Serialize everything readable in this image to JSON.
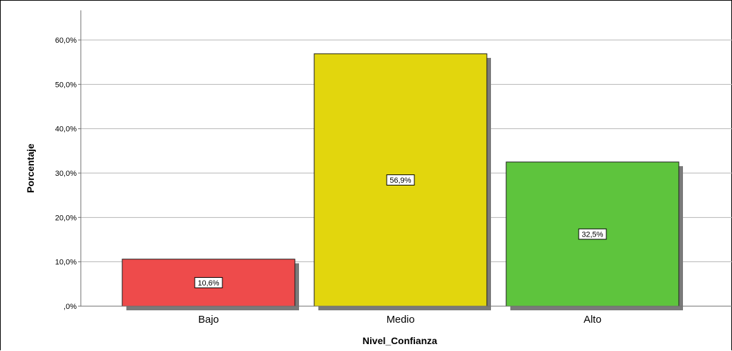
{
  "chart_data": {
    "type": "bar",
    "title": "",
    "xlabel": "Nivel_Confianza",
    "ylabel": "Porcentaje",
    "categories": [
      "Bajo",
      "Medio",
      "Alto"
    ],
    "values": [
      10.6,
      56.9,
      32.5
    ],
    "data_labels": [
      "10,6%",
      "56,9%",
      "32,5%"
    ],
    "colors": [
      "#ee4b4b",
      "#e2d60d",
      "#5ec43d"
    ],
    "ylim": [
      0,
      60
    ],
    "yticks": [
      0,
      10,
      20,
      30,
      40,
      50,
      60
    ],
    "ytick_labels": [
      ",0%",
      "10,0%",
      "20,0%",
      "30,0%",
      "40,0%",
      "50,0%",
      "60,0%"
    ],
    "grid": true,
    "legend": "none"
  }
}
